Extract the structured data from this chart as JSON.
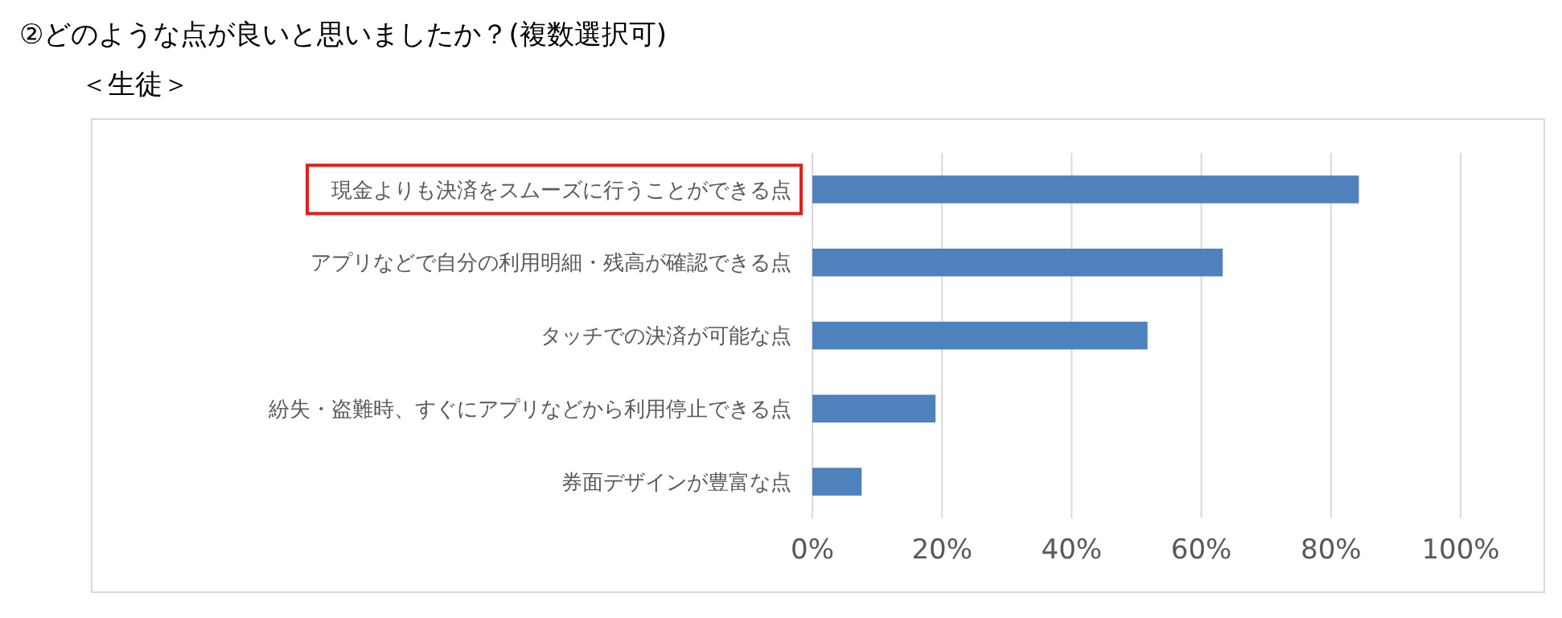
{
  "chart_data": {
    "type": "bar",
    "orientation": "horizontal",
    "title": "②どのような点が良いと思いましたか？(複数選択可)",
    "subtitle": "＜生徒＞",
    "categories": [
      "現金よりも決済をスムーズに行うことができる点",
      "アプリなどで自分の利用明細・残高が確認できる点",
      "タッチでの決済が可能な点",
      "紛失・盗難時、すぐにアプリなどから利用停止できる点",
      "券面デザインが豊富な点"
    ],
    "values": [
      84.3,
      63.3,
      51.7,
      19.0,
      7.6
    ],
    "color": "#4f81bd",
    "xlim": [
      0,
      100
    ],
    "xticks": [
      {
        "value": 0,
        "label": "0%"
      },
      {
        "value": 20,
        "label": "20%"
      },
      {
        "value": 40,
        "label": "40%"
      },
      {
        "value": 60,
        "label": "60%"
      },
      {
        "value": 80,
        "label": "80%"
      },
      {
        "value": 100,
        "label": "100%"
      }
    ],
    "grid": "x"
  }
}
